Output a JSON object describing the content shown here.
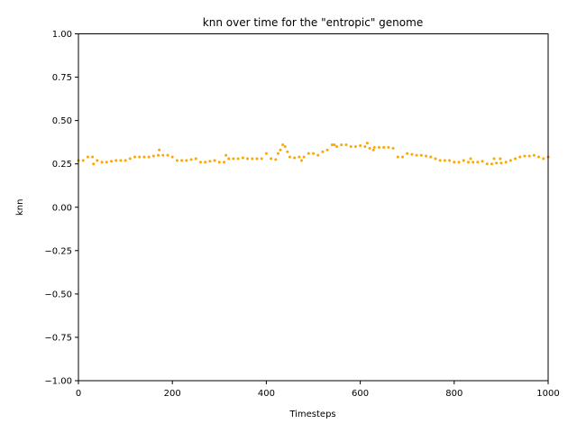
{
  "chart_data": {
    "type": "scatter",
    "title": "knn over time for the \"entropic\" genome",
    "xlabel": "Timesteps",
    "ylabel": "knn",
    "xlim": [
      0,
      1000
    ],
    "ylim": [
      -1.0,
      1.0
    ],
    "xticks": [
      0,
      200,
      400,
      600,
      800,
      1000
    ],
    "xtick_labels": [
      "0",
      "200",
      "400",
      "600",
      "800",
      "1000"
    ],
    "yticks": [
      -1.0,
      -0.75,
      -0.5,
      -0.25,
      0.0,
      0.25,
      0.5,
      0.75,
      1.0
    ],
    "ytick_labels": [
      "−1.00",
      "−0.75",
      "−0.50",
      "−0.25",
      "0.00",
      "0.25",
      "0.50",
      "0.75",
      "1.00"
    ],
    "grid": false,
    "marker_color": "#ffa500",
    "series": [
      {
        "name": "knn",
        "x": [
          0,
          10,
          20,
          30,
          32,
          40,
          50,
          60,
          70,
          80,
          90,
          100,
          110,
          120,
          130,
          140,
          150,
          160,
          170,
          172,
          180,
          190,
          200,
          210,
          220,
          230,
          240,
          250,
          260,
          270,
          280,
          290,
          300,
          310,
          314,
          320,
          330,
          340,
          350,
          360,
          370,
          380,
          390,
          400,
          410,
          420,
          425,
          430,
          435,
          440,
          445,
          450,
          460,
          470,
          475,
          480,
          490,
          500,
          510,
          520,
          530,
          540,
          545,
          550,
          560,
          570,
          580,
          590,
          600,
          610,
          615,
          620,
          628,
          630,
          640,
          650,
          660,
          670,
          680,
          690,
          700,
          710,
          720,
          730,
          740,
          750,
          760,
          770,
          780,
          790,
          800,
          810,
          820,
          830,
          835,
          840,
          850,
          860,
          870,
          880,
          885,
          890,
          898,
          900,
          910,
          920,
          930,
          940,
          950,
          960,
          970,
          980,
          990,
          1000
        ],
        "y": [
          0.27,
          0.27,
          0.29,
          0.29,
          0.25,
          0.27,
          0.26,
          0.26,
          0.265,
          0.27,
          0.27,
          0.27,
          0.28,
          0.29,
          0.29,
          0.29,
          0.29,
          0.295,
          0.3,
          0.33,
          0.3,
          0.3,
          0.29,
          0.27,
          0.27,
          0.27,
          0.275,
          0.28,
          0.26,
          0.26,
          0.265,
          0.27,
          0.26,
          0.26,
          0.3,
          0.28,
          0.28,
          0.28,
          0.285,
          0.28,
          0.28,
          0.28,
          0.28,
          0.31,
          0.28,
          0.275,
          0.31,
          0.33,
          0.36,
          0.35,
          0.32,
          0.29,
          0.285,
          0.29,
          0.27,
          0.29,
          0.31,
          0.31,
          0.3,
          0.32,
          0.33,
          0.36,
          0.36,
          0.35,
          0.36,
          0.36,
          0.35,
          0.35,
          0.355,
          0.35,
          0.37,
          0.34,
          0.33,
          0.345,
          0.345,
          0.345,
          0.345,
          0.34,
          0.29,
          0.29,
          0.31,
          0.305,
          0.3,
          0.3,
          0.295,
          0.29,
          0.28,
          0.27,
          0.27,
          0.27,
          0.26,
          0.26,
          0.27,
          0.26,
          0.28,
          0.26,
          0.26,
          0.265,
          0.25,
          0.25,
          0.28,
          0.255,
          0.28,
          0.255,
          0.26,
          0.27,
          0.28,
          0.29,
          0.295,
          0.295,
          0.3,
          0.29,
          0.28,
          0.29
        ]
      }
    ]
  }
}
